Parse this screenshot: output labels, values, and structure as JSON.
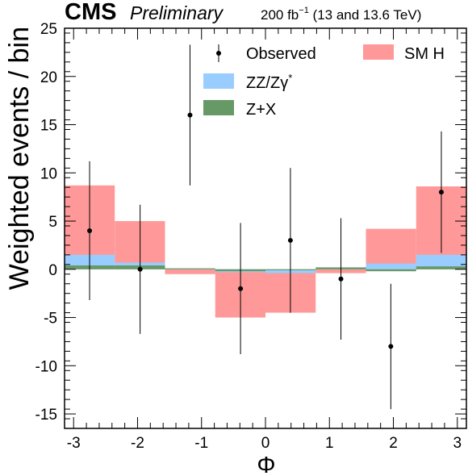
{
  "header": {
    "experiment": "CMS",
    "status": "Preliminary",
    "lumi_prefix": "200 fb",
    "lumi_exp": "−1",
    "lumi_suffix": " (13 and 13.6 TeV)"
  },
  "chart_data": {
    "type": "bar",
    "xlabel": "Φ",
    "ylabel": "Weighted events / bin",
    "xlim": [
      -3.1416,
      3.1416
    ],
    "ylim": [
      -16.5,
      25
    ],
    "x_ticks": [
      -3,
      -2,
      -1,
      0,
      1,
      2,
      3
    ],
    "y_ticks": [
      -15,
      -10,
      -5,
      0,
      5,
      10,
      15,
      20,
      25
    ],
    "bin_edges": [
      -3.1416,
      -2.3562,
      -1.5708,
      -0.7854,
      0,
      0.7854,
      1.5708,
      2.3562,
      3.1416
    ],
    "stacked": true,
    "series": [
      {
        "name": "Z+X",
        "color": "#669966",
        "values": [
          0.4,
          0.4,
          0.1,
          -0.2,
          -0.1,
          0.2,
          -0.2,
          0.3
        ]
      },
      {
        "name": "ZZ/Zγ",
        "name_sup": "*",
        "color": "#99ccff",
        "values": [
          1.1,
          0.3,
          0.0,
          -0.1,
          -0.3,
          -0.1,
          0.8,
          1.2
        ]
      },
      {
        "name": "SM H",
        "color": "#ff9999",
        "values": [
          7.2,
          4.3,
          -0.6,
          -4.7,
          -4.1,
          -0.5,
          3.6,
          7.1
        ]
      }
    ],
    "observed": {
      "name": "Observed",
      "x": [
        -2.75,
        -1.96,
        -1.18,
        -0.39,
        0.39,
        1.18,
        1.96,
        2.75
      ],
      "y": [
        4.0,
        0.0,
        16.0,
        -2.0,
        3.0,
        -1.0,
        -8.0,
        8.0
      ],
      "err": [
        7.2,
        6.7,
        7.3,
        6.8,
        7.5,
        6.3,
        6.5,
        6.3
      ]
    },
    "legend": {
      "position": "top-right",
      "columns": 2,
      "order": [
        "Observed",
        "SM H",
        "ZZ/Zγ",
        "Z+X"
      ]
    },
    "grid": false
  }
}
